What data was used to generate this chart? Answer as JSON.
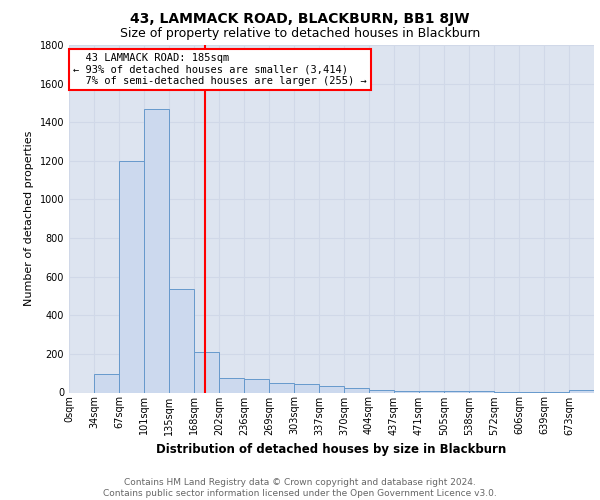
{
  "title": "43, LAMMACK ROAD, BLACKBURN, BB1 8JW",
  "subtitle": "Size of property relative to detached houses in Blackburn",
  "xlabel": "Distribution of detached houses by size in Blackburn",
  "ylabel": "Number of detached properties",
  "bin_labels": [
    "0sqm",
    "34sqm",
    "67sqm",
    "101sqm",
    "135sqm",
    "168sqm",
    "202sqm",
    "236sqm",
    "269sqm",
    "303sqm",
    "337sqm",
    "370sqm",
    "404sqm",
    "437sqm",
    "471sqm",
    "505sqm",
    "538sqm",
    "572sqm",
    "606sqm",
    "639sqm",
    "673sqm"
  ],
  "bar_values": [
    0,
    95,
    1200,
    1470,
    535,
    210,
    75,
    70,
    50,
    45,
    35,
    25,
    15,
    10,
    10,
    10,
    10,
    5,
    5,
    5,
    15
  ],
  "bar_color": "#ccd9ee",
  "bar_edge_color": "#6699cc",
  "bar_width": 1.0,
  "red_line_x": 5.44,
  "annotation_text": "  43 LAMMACK ROAD: 185sqm\n← 93% of detached houses are smaller (3,414)\n  7% of semi-detached houses are larger (255) →",
  "annotation_box_color": "white",
  "annotation_box_edge": "red",
  "ylim": [
    0,
    1800
  ],
  "yticks": [
    0,
    200,
    400,
    600,
    800,
    1000,
    1200,
    1400,
    1600,
    1800
  ],
  "grid_color": "#d0d8e8",
  "bg_color": "#dde4f0",
  "footer_text": "Contains HM Land Registry data © Crown copyright and database right 2024.\nContains public sector information licensed under the Open Government Licence v3.0.",
  "title_fontsize": 10,
  "subtitle_fontsize": 9,
  "xlabel_fontsize": 8.5,
  "ylabel_fontsize": 8,
  "tick_fontsize": 7,
  "annotation_fontsize": 7.5,
  "footer_fontsize": 6.5
}
